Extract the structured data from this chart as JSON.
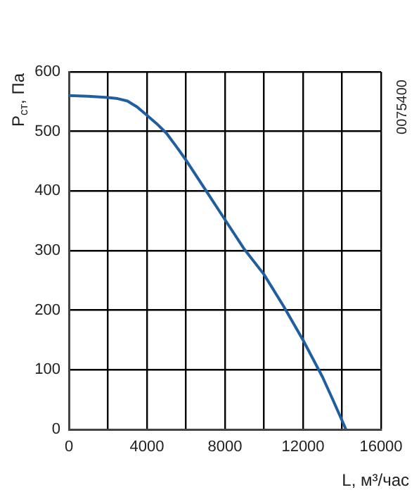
{
  "chart_data": {
    "type": "line",
    "xlabel": "L, м³/час",
    "ylabel": "P$_{ст}$, Па",
    "annotations": [
      "0075400"
    ],
    "x": [
      0,
      1000,
      2000,
      2500,
      3000,
      3500,
      4000,
      4500,
      5000,
      5500,
      6000,
      7000,
      8000,
      9000,
      10000,
      11000,
      12000,
      13000,
      13500,
      14000,
      14200
    ],
    "series": [
      {
        "color": "#1f5fa0",
        "values": [
          560,
          559,
          557,
          555,
          551,
          541,
          527,
          513,
          497,
          475,
          452,
          402,
          352,
          302,
          260,
          207,
          150,
          88,
          52,
          15,
          0
        ]
      }
    ],
    "xlim": [
      0,
      16000
    ],
    "xticks": [
      0,
      {
        "value": 2000,
        "label": null
      },
      4000,
      {
        "value": 6000,
        "label": null
      },
      8000,
      {
        "value": 10000,
        "label": null
      },
      12000,
      {
        "value": 14000,
        "label": null
      },
      16000
    ],
    "ylim": [
      0,
      600
    ],
    "yticks": [
      0,
      100,
      200,
      300,
      400,
      500,
      600
    ],
    "grid": true,
    "legend": false,
    "marker": "none",
    "line_style": "solid"
  }
}
